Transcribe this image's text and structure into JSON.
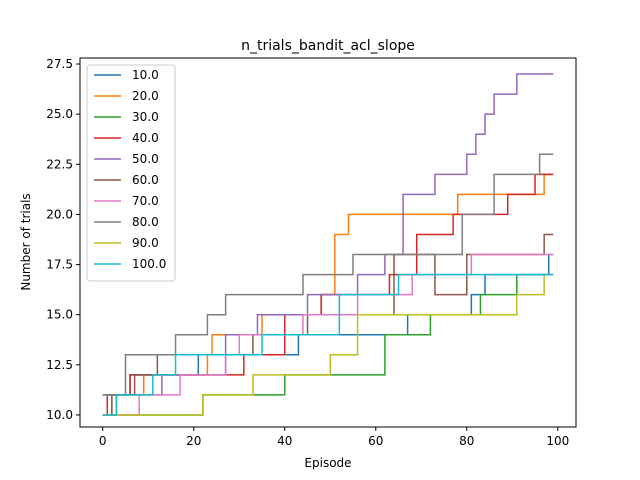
{
  "chart_data": {
    "type": "line",
    "step": true,
    "title": "n_trials_bandit_acl_slope",
    "xlabel": "Episode",
    "ylabel": "Number of trials",
    "xlim": [
      -5,
      104
    ],
    "ylim": [
      9.4,
      27.8
    ],
    "xticks": [
      0,
      20,
      40,
      60,
      80,
      100
    ],
    "yticks": [
      10.0,
      12.5,
      15.0,
      17.5,
      20.0,
      22.5,
      25.0,
      27.5
    ],
    "xtick_labels": [
      "0",
      "20",
      "40",
      "60",
      "80",
      "100"
    ],
    "ytick_labels": [
      "10.0",
      "12.5",
      "15.0",
      "17.5",
      "20.0",
      "22.5",
      "25.0",
      "27.5"
    ],
    "legend_position": "upper-left",
    "grid": false,
    "x_end": 99,
    "series": [
      {
        "name": "10.0",
        "color": "#1f77b4",
        "x": [
          0,
          6,
          13,
          21,
          41,
          43,
          60,
          67,
          81,
          84,
          98
        ],
        "y": [
          11,
          12,
          12,
          13,
          13,
          14,
          14,
          15,
          16,
          17,
          18
        ]
      },
      {
        "name": "20.0",
        "color": "#ff7f0e",
        "x": [
          0,
          2,
          9,
          23,
          24,
          35,
          48,
          51,
          54,
          78,
          97
        ],
        "y": [
          10,
          11,
          12,
          13,
          14,
          15,
          16,
          19,
          20,
          21,
          22
        ]
      },
      {
        "name": "30.0",
        "color": "#2ca02c",
        "x": [
          0,
          22,
          40,
          62,
          72,
          83,
          91,
          99
        ],
        "y": [
          10,
          11,
          12,
          14,
          15,
          16,
          17,
          17
        ]
      },
      {
        "name": "40.0",
        "color": "#d62728",
        "x": [
          0,
          1,
          6,
          14,
          31,
          40,
          48,
          63,
          69,
          77,
          89,
          95
        ],
        "y": [
          10,
          11,
          12,
          12,
          13,
          15,
          16,
          17,
          19,
          20,
          21,
          22
        ]
      },
      {
        "name": "50.0",
        "color": "#9467bd",
        "x": [
          0,
          3,
          13,
          27,
          34,
          45,
          56,
          62,
          66,
          73,
          80,
          82,
          84,
          86,
          88,
          91
        ],
        "y": [
          10,
          11,
          12,
          14,
          15,
          16,
          17,
          18,
          21,
          22,
          23,
          24,
          25,
          26,
          26,
          27
        ]
      },
      {
        "name": "60.0",
        "color": "#8c564b",
        "x": [
          0,
          2,
          7,
          12,
          33,
          45,
          64,
          73,
          80,
          97
        ],
        "y": [
          10,
          11,
          12,
          13,
          14,
          15,
          18,
          16,
          18,
          19
        ]
      },
      {
        "name": "70.0",
        "color": "#e377c2",
        "x": [
          0,
          8,
          17,
          27,
          30,
          44,
          56,
          68,
          81,
          89,
          96
        ],
        "y": [
          10,
          11,
          12,
          13,
          14,
          15,
          16,
          17,
          18,
          18,
          18
        ]
      },
      {
        "name": "80.0",
        "color": "#7f7f7f",
        "x": [
          0,
          5,
          16,
          23,
          27,
          44,
          47,
          55,
          64,
          79,
          86,
          93,
          96
        ],
        "y": [
          11,
          13,
          14,
          15,
          16,
          17,
          17,
          18,
          18,
          20,
          22,
          22,
          23
        ]
      },
      {
        "name": "90.0",
        "color": "#bcbd22",
        "x": [
          0,
          7,
          14,
          22,
          33,
          50,
          56,
          76,
          91,
          97
        ],
        "y": [
          10,
          10,
          10,
          11,
          12,
          13,
          15,
          15,
          16,
          17
        ]
      },
      {
        "name": "100.0",
        "color": "#17becf",
        "x": [
          0,
          3,
          11,
          16,
          22,
          35,
          52,
          65,
          83,
          98
        ],
        "y": [
          10,
          11,
          12,
          13,
          13,
          14,
          16,
          17,
          17,
          17
        ]
      }
    ]
  }
}
